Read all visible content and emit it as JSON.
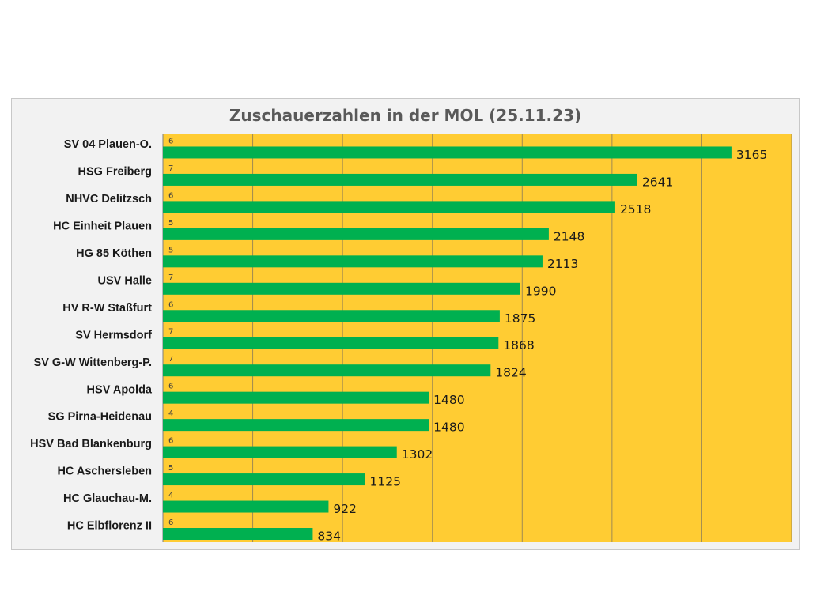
{
  "chart_data": {
    "type": "bar",
    "orientation": "horizontal",
    "title": "Zuschauerzahlen in der MOL (25.11.23)",
    "categories": [
      "SV 04 Plauen-O.",
      "HSG Freiberg",
      "NHVC Delitzsch",
      "HC Einheit Plauen",
      "HG 85 Köthen",
      "USV Halle",
      "HV R-W Staßfurt",
      "SV Hermsdorf",
      "SV G-W Wittenberg-P.",
      "HSV Apolda",
      "SG Pirna-Heidenau",
      "HSV Bad Blankenburg",
      "HC Aschersleben",
      "HC Glauchau-M.",
      "HC Elbflorenz II"
    ],
    "values": [
      3165,
      2641,
      2518,
      2148,
      2113,
      1990,
      1875,
      1868,
      1824,
      1480,
      1480,
      1302,
      1125,
      922,
      834
    ],
    "secondary_labels": [
      "6",
      "7",
      "6",
      "5",
      "5",
      "7",
      "6",
      "7",
      "7",
      "6",
      "4",
      "6",
      "5",
      "4",
      "6"
    ],
    "xlim": [
      0,
      3500
    ],
    "grid": true,
    "colors": {
      "bar": "#00b050",
      "plot_background": "#ffcc33",
      "gridline": "#a08a52"
    }
  }
}
